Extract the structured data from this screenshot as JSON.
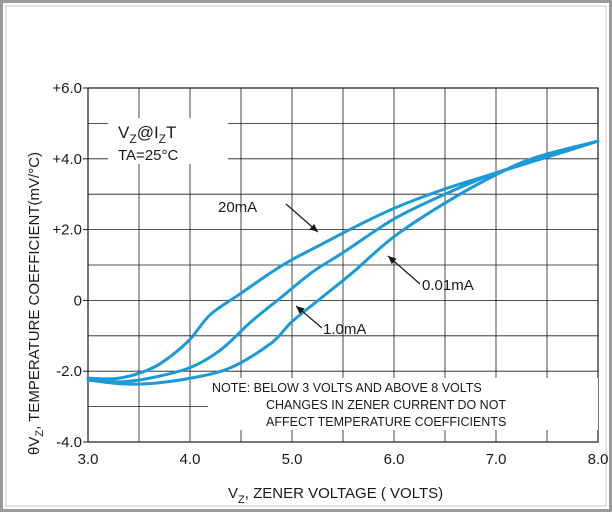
{
  "chart_data": {
    "type": "line",
    "xlabel": "V_Z, ZENER VOLTAGE ( VOLTS)",
    "xlabel_parts": {
      "main": "V",
      "sub": "Z",
      "rest": ", ZENER VOLTAGE ( VOLTS)"
    },
    "ylabel": "θV_Z, TEMPERATURE COEFFICIENT(mV/°C)",
    "ylabel_parts": {
      "sym": "θV",
      "sub": "Z",
      "rest": ",  TEMPERATURE COEFFICIENT(mV/°C)"
    },
    "xlim": [
      3.0,
      8.0
    ],
    "ylim": [
      -4.0,
      6.0
    ],
    "x_ticks": [
      {
        "value": 3.0,
        "label": "3.0"
      },
      {
        "value": 4.0,
        "label": "4.0"
      },
      {
        "value": 5.0,
        "label": "5.0"
      },
      {
        "value": 6.0,
        "label": "6.0"
      },
      {
        "value": 7.0,
        "label": "7.0"
      },
      {
        "value": 8.0,
        "label": "8.0"
      }
    ],
    "y_ticks": [
      {
        "value": -4.0,
        "label": "-4.0"
      },
      {
        "value": -2.0,
        "label": "-2.0"
      },
      {
        "value": 0.0,
        "label": "0"
      },
      {
        "value": 2.0,
        "label": "+2.0"
      },
      {
        "value": 4.0,
        "label": "+4.0"
      },
      {
        "value": 6.0,
        "label": "+6.0"
      }
    ],
    "grid": {
      "x_step": 0.5,
      "y_step": 1.0
    },
    "condition_box": {
      "line1_main": "V",
      "line1_sub1": "Z",
      "line1_mid": "@I",
      "line1_sub2": "Z",
      "line1_end": "T",
      "line2": "TA=25°C"
    },
    "note": [
      "NOTE: BELOW 3 VOLTS AND ABOVE 8 VOLTS",
      "CHANGES IN ZENER CURRENT DO NOT",
      "AFFECT TEMPERATURE COEFFICIENTS"
    ],
    "line_color": "#1a9ad6",
    "series": [
      {
        "name": "20mA",
        "x": [
          3.0,
          3.3,
          3.6,
          3.8,
          4.0,
          4.2,
          4.5,
          4.8,
          5.0,
          5.3,
          5.6,
          6.0,
          6.5,
          7.0,
          7.5,
          8.0
        ],
        "y": [
          -2.2,
          -2.2,
          -1.95,
          -1.6,
          -1.1,
          -0.4,
          0.2,
          0.8,
          1.15,
          1.6,
          2.05,
          2.6,
          3.15,
          3.6,
          4.05,
          4.5
        ]
      },
      {
        "name": "1.0mA",
        "x": [
          3.0,
          3.3,
          3.6,
          4.0,
          4.3,
          4.6,
          4.9,
          5.2,
          5.5,
          6.0,
          6.5,
          7.0,
          7.5,
          8.0
        ],
        "y": [
          -2.2,
          -2.3,
          -2.2,
          -1.9,
          -1.4,
          -0.6,
          0.1,
          0.8,
          1.35,
          2.3,
          3.0,
          3.6,
          4.05,
          4.5
        ]
      },
      {
        "name": "0.01mA",
        "x": [
          3.0,
          3.3,
          3.6,
          4.0,
          4.4,
          4.8,
          5.0,
          5.3,
          5.6,
          6.0,
          6.5,
          7.0,
          7.4,
          8.0
        ],
        "y": [
          -2.25,
          -2.35,
          -2.35,
          -2.2,
          -1.9,
          -1.2,
          -0.6,
          0.1,
          0.8,
          1.8,
          2.75,
          3.55,
          4.05,
          4.5
        ]
      }
    ],
    "curve_labels": [
      {
        "series": "20mA",
        "text": "20mA"
      },
      {
        "series": "1.0mA",
        "text": "1.0mA"
      },
      {
        "series": "0.01mA",
        "text": "0.01mA"
      }
    ]
  }
}
